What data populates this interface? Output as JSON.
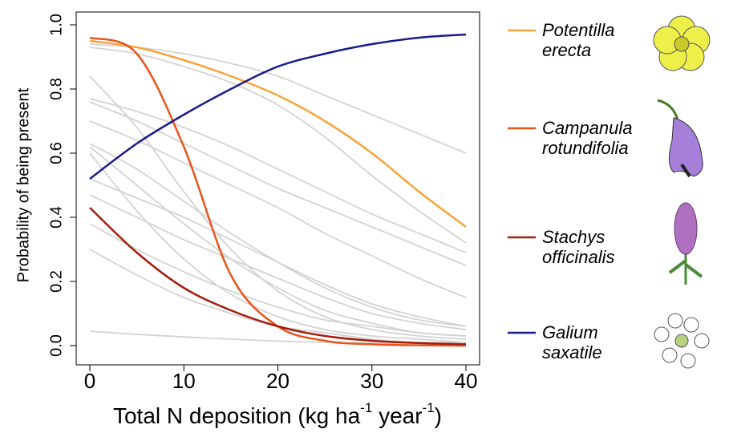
{
  "chart_data": {
    "type": "line",
    "xlabel_parts": [
      "Total N deposition (kg ha",
      "-1",
      " year",
      "-1",
      ")"
    ],
    "ylabel": "Probability of being present",
    "x": [
      0,
      5,
      10,
      15,
      20,
      25,
      30,
      35,
      40
    ],
    "xlim": [
      -1.45,
      41.45
    ],
    "xticks": [
      0,
      10,
      20,
      30,
      40
    ],
    "ylim": [
      -0.06,
      1.04
    ],
    "yticks": [
      {
        "value": 0,
        "label": "0.0"
      },
      0.2,
      0.4,
      0.6,
      0.8,
      {
        "value": 1,
        "label": "1.0"
      }
    ],
    "legend": "right",
    "series": [
      {
        "color": "#d3d3d3",
        "values": [
          0.94,
          0.93,
          0.91,
          0.88,
          0.84,
          0.78,
          0.72,
          0.66,
          0.6
        ]
      },
      {
        "color": "#d3d3d3",
        "values": [
          0.93,
          0.91,
          0.87,
          0.82,
          0.75,
          0.65,
          0.53,
          0.42,
          0.32
        ]
      },
      {
        "color": "#d3d3d3",
        "values": [
          0.77,
          0.73,
          0.68,
          0.62,
          0.55,
          0.48,
          0.41,
          0.35,
          0.29
        ]
      },
      {
        "color": "#d3d3d3",
        "values": [
          0.76,
          0.7,
          0.63,
          0.56,
          0.49,
          0.43,
          0.37,
          0.31,
          0.25
        ]
      },
      {
        "color": "#d3d3d3",
        "values": [
          0.7,
          0.64,
          0.57,
          0.5,
          0.43,
          0.35,
          0.28,
          0.21,
          0.15
        ]
      },
      {
        "color": "#d3d3d3",
        "values": [
          0.84,
          0.68,
          0.48,
          0.3,
          0.17,
          0.09,
          0.05,
          0.03,
          0.02
        ]
      },
      {
        "color": "#d3d3d3",
        "values": [
          0.63,
          0.55,
          0.45,
          0.35,
          0.26,
          0.18,
          0.12,
          0.08,
          0.06
        ]
      },
      {
        "color": "#d3d3d3",
        "values": [
          0.62,
          0.5,
          0.38,
          0.27,
          0.18,
          0.11,
          0.07,
          0.04,
          0.03
        ]
      },
      {
        "color": "#d3d3d3",
        "values": [
          0.6,
          0.42,
          0.27,
          0.16,
          0.09,
          0.05,
          0.03,
          0.02,
          0.01
        ]
      },
      {
        "color": "#d3d3d3",
        "values": [
          0.52,
          0.46,
          0.4,
          0.33,
          0.26,
          0.19,
          0.13,
          0.09,
          0.06
        ]
      },
      {
        "color": "#d3d3d3",
        "values": [
          0.47,
          0.4,
          0.33,
          0.27,
          0.21,
          0.15,
          0.1,
          0.07,
          0.05
        ]
      },
      {
        "color": "#d3d3d3",
        "values": [
          0.38,
          0.3,
          0.23,
          0.17,
          0.12,
          0.08,
          0.06,
          0.04,
          0.03
        ]
      },
      {
        "color": "#d3d3d3",
        "values": [
          0.3,
          0.22,
          0.15,
          0.1,
          0.06,
          0.04,
          0.02,
          0.01,
          0.01
        ]
      },
      {
        "color": "#d3d3d3",
        "values": [
          0.045,
          0.035,
          0.027,
          0.02,
          0.014,
          0.01,
          0.007,
          0.005,
          0.003
        ]
      },
      {
        "name": "Potentilla erecta",
        "color": "#f7a43a",
        "values": [
          0.95,
          0.93,
          0.89,
          0.84,
          0.78,
          0.7,
          0.6,
          0.48,
          0.37
        ]
      },
      {
        "name": "Campanula rotundifolia",
        "color": "#e8541c",
        "values": [
          0.96,
          0.91,
          0.62,
          0.22,
          0.06,
          0.015,
          0.004,
          0.001,
          0
        ]
      },
      {
        "name": "Stachys officinalis",
        "color": "#a51d0a",
        "values": [
          0.43,
          0.29,
          0.18,
          0.11,
          0.06,
          0.03,
          0.015,
          0.008,
          0.004
        ]
      },
      {
        "name": "Galium saxatile",
        "color": "#1a1a8c",
        "values": [
          0.52,
          0.63,
          0.72,
          0.8,
          0.87,
          0.91,
          0.94,
          0.96,
          0.97
        ]
      }
    ]
  }
}
